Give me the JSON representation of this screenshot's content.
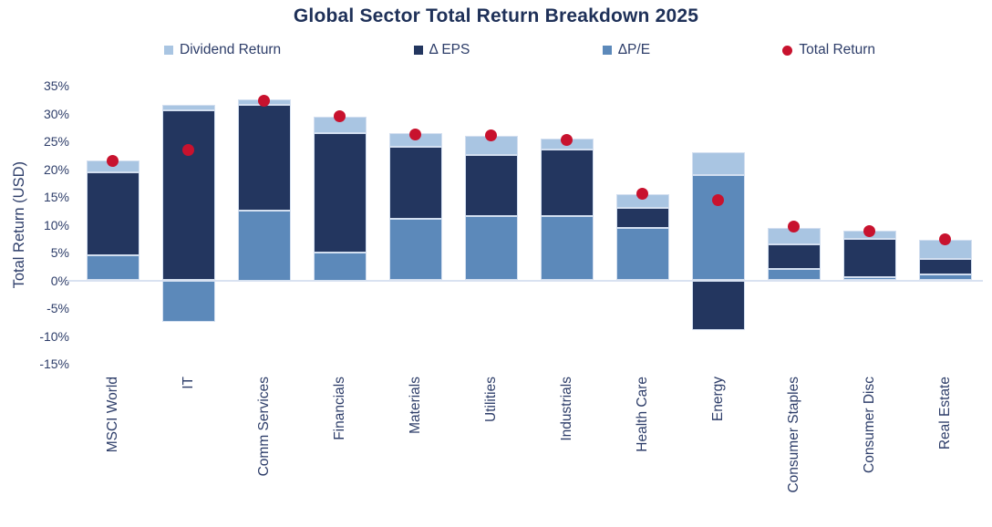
{
  "legend": [
    {
      "label": "Dividend Return",
      "marker": "square",
      "color": "#A9C5E2"
    },
    {
      "label": "Δ EPS",
      "marker": "square",
      "color": "#23365F"
    },
    {
      "label": "ΔP/E",
      "marker": "square",
      "color": "#5C89BA"
    },
    {
      "label": "Total Return",
      "marker": "circle",
      "color": "#C8122E"
    }
  ],
  "chart_data": {
    "type": "bar",
    "stacked": true,
    "title": "Global Sector Total Return Breakdown 2025",
    "ylabel": "Total Return (USD)",
    "ylim": [
      -15,
      35
    ],
    "grid": false,
    "legend_position": "top",
    "categories": [
      "MSCI World",
      "IT",
      "Comm Services",
      "Financials",
      "Materials",
      "Utilities",
      "Industrials",
      "Health Care",
      "Energy",
      "Consumer Staples",
      "Consumer Disc",
      "Real Estate"
    ],
    "series": [
      {
        "name": "ΔP/E",
        "color": "#5C89BA",
        "values": [
          4.5,
          -7.5,
          12.5,
          5.0,
          11.0,
          11.5,
          11.5,
          9.5,
          19.0,
          2.0,
          0.5,
          1.0
        ]
      },
      {
        "name": "Δ EPS",
        "color": "#23365F",
        "values": [
          15.0,
          30.5,
          19.0,
          21.5,
          13.0,
          11.0,
          12.0,
          3.5,
          -9.0,
          4.5,
          7.0,
          2.8
        ]
      },
      {
        "name": "Dividend Return",
        "color": "#A9C5E2",
        "values": [
          2.0,
          1.0,
          1.0,
          3.0,
          2.5,
          3.5,
          2.0,
          2.5,
          4.0,
          3.0,
          1.5,
          3.5
        ]
      }
    ],
    "points": {
      "name": "Total Return",
      "color": "#C8122E",
      "values": [
        21.5,
        23.5,
        32.3,
        29.5,
        26.3,
        26.0,
        25.3,
        15.5,
        14.5,
        9.7,
        8.8,
        7.3
      ]
    },
    "yticks": [
      {
        "value": 35,
        "label": "35%"
      },
      {
        "value": 30,
        "label": "30%"
      },
      {
        "value": 25,
        "label": "25%"
      },
      {
        "value": 20,
        "label": "20%"
      },
      {
        "value": 15,
        "label": "15%"
      },
      {
        "value": 10,
        "label": "10%"
      },
      {
        "value": 5,
        "label": "5%"
      },
      {
        "value": 0,
        "label": "0%"
      },
      {
        "value": -5,
        "label": "-5%"
      },
      {
        "value": -10,
        "label": "-10%"
      },
      {
        "value": -15,
        "label": "-15%"
      }
    ],
    "axis_line_color": "#D9E2F1",
    "text_color": "#2D3D69",
    "title_color": "#1E3058"
  }
}
